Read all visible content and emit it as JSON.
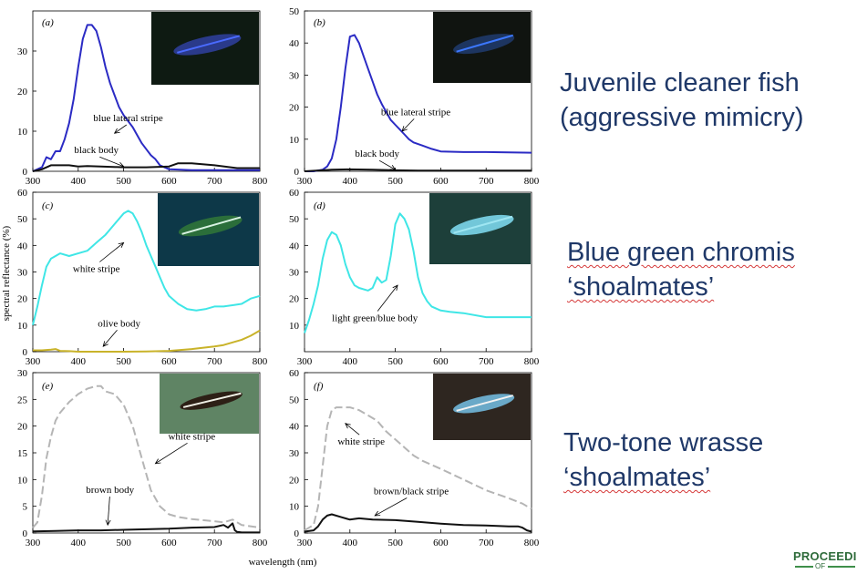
{
  "chart_data": [
    {
      "id": "a",
      "type": "line",
      "panel_label": "(a)",
      "xlim": [
        300,
        800
      ],
      "ylim": [
        0,
        40
      ],
      "yticks": [
        0,
        10,
        20,
        30
      ],
      "series": [
        {
          "name": "blue lateral stripe",
          "color": "#2b2bc4",
          "dash": "solid",
          "x": [
            300,
            320,
            330,
            340,
            350,
            360,
            370,
            380,
            390,
            400,
            410,
            420,
            430,
            440,
            450,
            460,
            470,
            480,
            490,
            500,
            510,
            520,
            530,
            540,
            550,
            560,
            570,
            580,
            600,
            650,
            700,
            750,
            800
          ],
          "y": [
            0,
            1,
            3.5,
            3,
            5,
            5,
            8,
            12,
            18,
            26,
            33,
            36.5,
            36.5,
            35,
            31,
            26,
            22,
            19,
            16,
            14,
            12.5,
            11,
            9,
            7,
            5.5,
            4,
            3,
            1.5,
            0.5,
            0.3,
            0.3,
            0.3,
            0.3
          ]
        },
        {
          "name": "black body",
          "color": "#111111",
          "dash": "solid",
          "x": [
            300,
            320,
            340,
            360,
            380,
            400,
            420,
            450,
            500,
            550,
            600,
            620,
            650,
            700,
            750,
            800
          ],
          "y": [
            0,
            0.5,
            1.5,
            1.5,
            1.5,
            1.2,
            1.3,
            1.2,
            1.0,
            1.0,
            1.2,
            2.0,
            2.0,
            1.5,
            0.8,
            0.8
          ]
        }
      ],
      "annotations": [
        {
          "text": "blue lateral stripe",
          "x": 510,
          "y": 12.5,
          "arrow_to": [
            480,
            9.5
          ]
        },
        {
          "text": "black body",
          "x": 440,
          "y": 4.5,
          "arrow_to": [
            500,
            1.2
          ]
        }
      ]
    },
    {
      "id": "b",
      "type": "line",
      "panel_label": "(b)",
      "xlim": [
        300,
        800
      ],
      "ylim": [
        0,
        50
      ],
      "yticks": [
        0,
        10,
        20,
        30,
        40,
        50
      ],
      "series": [
        {
          "name": "blue lateral stripe",
          "color": "#2b2bc4",
          "dash": "solid",
          "x": [
            300,
            320,
            340,
            350,
            360,
            370,
            380,
            390,
            400,
            410,
            420,
            430,
            440,
            450,
            460,
            470,
            480,
            490,
            500,
            510,
            520,
            530,
            540,
            560,
            580,
            600,
            650,
            700,
            800
          ],
          "y": [
            0,
            0,
            0.5,
            1.5,
            4,
            10,
            20,
            32,
            42,
            42.5,
            40,
            36,
            32,
            28,
            24,
            21,
            18.5,
            16,
            14.5,
            13,
            11.5,
            10,
            9,
            8,
            7,
            6.2,
            6,
            6,
            5.8
          ]
        },
        {
          "name": "black body",
          "color": "#111111",
          "dash": "solid",
          "x": [
            300,
            340,
            360,
            400,
            450,
            500,
            550,
            600,
            650,
            700,
            800
          ],
          "y": [
            0,
            0.3,
            0.5,
            0.6,
            0.5,
            0.3,
            0.2,
            0.2,
            0.2,
            0.2,
            0.2
          ]
        }
      ],
      "annotations": [
        {
          "text": "blue lateral stripe",
          "x": 545,
          "y": 17.5,
          "arrow_to": [
            515,
            12.5
          ]
        },
        {
          "text": "black body",
          "x": 460,
          "y": 4.5,
          "arrow_to": [
            500,
            0.5
          ]
        }
      ]
    },
    {
      "id": "c",
      "type": "line",
      "panel_label": "(c)",
      "xlim": [
        300,
        800
      ],
      "ylim": [
        0,
        60
      ],
      "yticks": [
        0,
        10,
        20,
        30,
        40,
        50,
        60
      ],
      "series": [
        {
          "name": "white stripe",
          "color": "#3fe6e6",
          "dash": "solid",
          "x": [
            300,
            310,
            320,
            330,
            340,
            350,
            360,
            380,
            400,
            420,
            440,
            460,
            480,
            500,
            510,
            520,
            530,
            540,
            550,
            560,
            570,
            580,
            590,
            600,
            620,
            640,
            660,
            680,
            700,
            720,
            740,
            760,
            780,
            800
          ],
          "y": [
            10,
            17,
            25,
            32,
            35,
            36,
            37,
            36,
            37,
            38,
            41,
            44,
            48,
            52,
            53,
            52,
            49,
            45,
            40,
            36,
            32,
            28,
            24,
            21,
            18,
            16,
            15.5,
            16,
            17,
            17,
            17.5,
            18,
            20,
            21
          ]
        },
        {
          "name": "olive body",
          "color": "#c9b32a",
          "dash": "solid",
          "x": [
            300,
            320,
            340,
            350,
            360,
            380,
            400,
            450,
            500,
            550,
            600,
            650,
            700,
            720,
            740,
            760,
            780,
            800
          ],
          "y": [
            0.5,
            0.5,
            0.8,
            1.0,
            0.3,
            0.2,
            0,
            0,
            0,
            0.1,
            0.3,
            1,
            2,
            2.5,
            3.5,
            4.5,
            6,
            8
          ]
        }
      ],
      "annotations": [
        {
          "text": "white stripe",
          "x": 440,
          "y": 30,
          "arrow_to": [
            500,
            41
          ]
        },
        {
          "text": "olive body",
          "x": 490,
          "y": 9.5,
          "arrow_to": [
            455,
            2
          ]
        }
      ]
    },
    {
      "id": "d",
      "type": "line",
      "panel_label": "(d)",
      "xlim": [
        300,
        800
      ],
      "ylim": [
        0,
        60
      ],
      "yticks": [
        10,
        20,
        30,
        40,
        50,
        60
      ],
      "series": [
        {
          "name": "light green/blue body",
          "color": "#3fe6e6",
          "dash": "solid",
          "x": [
            300,
            310,
            320,
            330,
            340,
            350,
            360,
            370,
            380,
            390,
            400,
            410,
            420,
            440,
            450,
            460,
            470,
            480,
            490,
            500,
            510,
            520,
            530,
            540,
            550,
            560,
            570,
            580,
            600,
            620,
            650,
            700,
            800
          ],
          "y": [
            7,
            12,
            18,
            25,
            35,
            42,
            45,
            44,
            40,
            33,
            28,
            25,
            24,
            23,
            24,
            28,
            26,
            27,
            36,
            48,
            52,
            50,
            46,
            38,
            28,
            22,
            19,
            17,
            15.5,
            15,
            14.5,
            13,
            13
          ]
        }
      ],
      "annotations": [
        {
          "text": "light green/blue body",
          "x": 455,
          "y": 11.5,
          "arrow_to": [
            505,
            25
          ]
        }
      ]
    },
    {
      "id": "e",
      "type": "line",
      "panel_label": "(e)",
      "xlim": [
        300,
        800
      ],
      "ylim": [
        0,
        30
      ],
      "yticks": [
        0,
        5,
        10,
        15,
        20,
        25,
        30
      ],
      "series": [
        {
          "name": "white stripe",
          "color": "#b5b5b5",
          "dash": "dashed",
          "x": [
            300,
            310,
            320,
            330,
            340,
            350,
            360,
            380,
            400,
            420,
            440,
            450,
            460,
            480,
            500,
            520,
            540,
            560,
            580,
            600,
            620,
            650,
            700,
            720,
            740,
            750,
            760,
            800
          ],
          "y": [
            1,
            2,
            7,
            14,
            18,
            21,
            22.5,
            24.5,
            26,
            27,
            27.5,
            27.5,
            26.5,
            26,
            24,
            20,
            14,
            8,
            5,
            3.5,
            3,
            2.6,
            2.2,
            2,
            2.5,
            2,
            1.5,
            1
          ]
        },
        {
          "name": "brown body",
          "color": "#111111",
          "dash": "solid",
          "x": [
            300,
            350,
            400,
            450,
            500,
            550,
            600,
            650,
            700,
            720,
            730,
            740,
            745,
            750,
            760,
            800
          ],
          "y": [
            0.3,
            0.4,
            0.5,
            0.5,
            0.6,
            0.7,
            0.8,
            1.0,
            1.1,
            1.5,
            1.0,
            1.8,
            0.5,
            0.2,
            0.1,
            0.1
          ]
        }
      ],
      "annotations": [
        {
          "text": "white stripe",
          "x": 650,
          "y": 17.5,
          "arrow_to": [
            570,
            13
          ]
        },
        {
          "text": "brown body",
          "x": 470,
          "y": 7.5,
          "arrow_to": [
            465,
            1.5
          ]
        }
      ]
    },
    {
      "id": "f",
      "type": "line",
      "panel_label": "(f)",
      "xlim": [
        300,
        800
      ],
      "ylim": [
        0,
        60
      ],
      "yticks": [
        0,
        10,
        20,
        30,
        40,
        50,
        60
      ],
      "series": [
        {
          "name": "white stripe",
          "color": "#b5b5b5",
          "dash": "dashed",
          "x": [
            300,
            320,
            330,
            340,
            350,
            360,
            370,
            400,
            420,
            440,
            460,
            480,
            500,
            520,
            540,
            560,
            600,
            650,
            700,
            750,
            780,
            800
          ],
          "y": [
            1,
            3,
            10,
            25,
            40,
            46,
            47,
            47,
            46,
            44,
            42,
            38,
            35,
            32,
            29,
            27,
            24,
            20,
            16,
            13,
            11,
            9
          ]
        },
        {
          "name": "brown/black stripe",
          "color": "#111111",
          "dash": "solid",
          "x": [
            300,
            320,
            330,
            340,
            350,
            360,
            380,
            400,
            420,
            450,
            500,
            550,
            600,
            650,
            700,
            750,
            770,
            780,
            790,
            800
          ],
          "y": [
            0.5,
            1,
            2.5,
            5,
            6.5,
            7,
            6,
            5,
            5.5,
            5,
            4.8,
            4.2,
            3.5,
            3,
            2.8,
            2.5,
            2.5,
            2,
            1,
            0.5
          ]
        }
      ],
      "annotations": [
        {
          "text": "white stripe",
          "x": 425,
          "y": 33,
          "arrow_to": [
            390,
            41
          ]
        },
        {
          "text": "brown/black stripe",
          "x": 535,
          "y": 14.5,
          "arrow_to": [
            455,
            6.5
          ]
        }
      ]
    }
  ],
  "axes_text": {
    "xticks": [
      "300",
      "400",
      "500",
      "600",
      "700",
      "800"
    ],
    "xlabel": "wavelength (nm)",
    "ylabel": "spectral reflectance (%)"
  },
  "captions": {
    "row1": {
      "line1": "Juvenile cleaner fish",
      "line2": "(aggressive mimicry)"
    },
    "row2": {
      "line1": "Blue green chromis",
      "line2": "‘shoalmates’"
    },
    "row3": {
      "line1": "Two-tone wrasse",
      "line2": "‘shoalmates’"
    }
  },
  "logo": {
    "line1": "PROCEEDIN",
    "line2": "OF"
  }
}
